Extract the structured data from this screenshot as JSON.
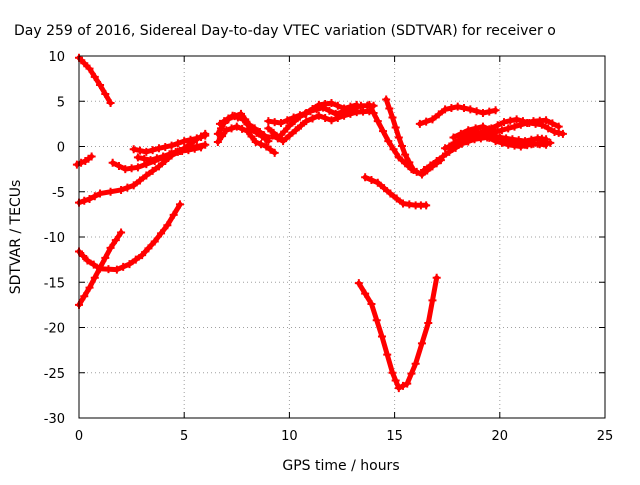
{
  "chart_data": {
    "type": "scatter",
    "title": "Day 259 of 2016, Sidereal Day-to-day VTEC variation (SDTVAR) for receiver o",
    "xlabel": "GPS time / hours",
    "ylabel": "SDTVAR / TECUs",
    "xlim": [
      0,
      25
    ],
    "ylim": [
      -30,
      10
    ],
    "xticks": [
      "0",
      "5",
      "10",
      "15",
      "20",
      "25"
    ],
    "yticks": [
      "10",
      "5",
      "0",
      "-5",
      "-10",
      "-15",
      "-20",
      "-25",
      "-30"
    ],
    "grid": true,
    "legend": "none",
    "color": "#ff0000",
    "series": [
      {
        "points": [
          [
            0.0,
            9.8
          ],
          [
            0.5,
            8.6
          ],
          [
            1.0,
            6.8
          ],
          [
            1.5,
            4.8
          ]
        ]
      },
      {
        "points": [
          [
            -0.1,
            -2.0
          ],
          [
            0.3,
            -1.6
          ],
          [
            0.6,
            -1.1
          ]
        ]
      },
      {
        "points": [
          [
            0.0,
            -6.2
          ],
          [
            0.5,
            -5.8
          ],
          [
            1.0,
            -5.2
          ],
          [
            2.0,
            -4.8
          ],
          [
            2.6,
            -4.3
          ],
          [
            3.2,
            -3.2
          ],
          [
            3.8,
            -2.2
          ],
          [
            4.4,
            -1.0
          ],
          [
            5.0,
            -0.2
          ],
          [
            5.6,
            0.8
          ],
          [
            6.0,
            1.4
          ]
        ]
      },
      {
        "points": [
          [
            0.0,
            -11.6
          ],
          [
            0.4,
            -12.6
          ],
          [
            1.0,
            -13.5
          ],
          [
            1.8,
            -13.6
          ],
          [
            2.4,
            -13.0
          ],
          [
            3.0,
            -12.0
          ],
          [
            3.6,
            -10.5
          ],
          [
            4.2,
            -8.7
          ],
          [
            4.8,
            -6.4
          ]
        ]
      },
      {
        "points": [
          [
            0.0,
            -17.5
          ],
          [
            0.5,
            -15.6
          ],
          [
            1.0,
            -13.4
          ],
          [
            1.5,
            -11.2
          ],
          [
            2.0,
            -9.5
          ]
        ]
      },
      {
        "points": [
          [
            1.6,
            -1.8
          ],
          [
            2.2,
            -2.5
          ],
          [
            2.8,
            -2.3
          ],
          [
            3.6,
            -1.6
          ],
          [
            4.4,
            -0.8
          ],
          [
            5.2,
            -0.2
          ],
          [
            6.0,
            0.2
          ]
        ]
      },
      {
        "points": [
          [
            2.6,
            -0.3
          ],
          [
            3.2,
            -0.6
          ],
          [
            3.8,
            -0.2
          ],
          [
            4.4,
            0.1
          ],
          [
            5.0,
            0.6
          ],
          [
            5.6,
            0.9
          ],
          [
            6.0,
            1.2
          ]
        ]
      },
      {
        "points": [
          [
            2.8,
            -1.2
          ],
          [
            3.4,
            -1.5
          ],
          [
            4.0,
            -1.1
          ],
          [
            4.6,
            -0.6
          ],
          [
            5.2,
            -0.4
          ],
          [
            5.8,
            -0.1
          ]
        ]
      },
      {
        "points": [
          [
            6.6,
            1.4
          ],
          [
            6.9,
            2.6
          ],
          [
            7.3,
            3.4
          ],
          [
            7.8,
            3.0
          ],
          [
            8.2,
            1.9
          ],
          [
            8.7,
            1.1
          ],
          [
            9.0,
            0.6
          ]
        ]
      },
      {
        "points": [
          [
            6.6,
            0.5
          ],
          [
            7.0,
            1.8
          ],
          [
            7.5,
            2.2
          ],
          [
            8.0,
            1.7
          ],
          [
            8.4,
            0.5
          ],
          [
            8.9,
            0.0
          ],
          [
            9.3,
            -0.7
          ]
        ]
      },
      {
        "points": [
          [
            6.7,
            2.5
          ],
          [
            7.1,
            3.1
          ],
          [
            7.7,
            3.6
          ],
          [
            8.1,
            2.4
          ],
          [
            8.6,
            1.6
          ],
          [
            9.0,
            0.9
          ]
        ]
      },
      {
        "points": [
          [
            9.0,
            2.0
          ],
          [
            9.5,
            1.0
          ],
          [
            10.0,
            2.3
          ],
          [
            10.5,
            3.3
          ],
          [
            11.0,
            3.9
          ],
          [
            11.6,
            4.3
          ],
          [
            12.2,
            3.6
          ],
          [
            12.8,
            4.0
          ],
          [
            13.4,
            4.5
          ],
          [
            14.0,
            4.5
          ]
        ]
      },
      {
        "points": [
          [
            9.2,
            1.2
          ],
          [
            9.7,
            0.6
          ],
          [
            10.3,
            1.8
          ],
          [
            10.8,
            2.8
          ],
          [
            11.4,
            3.4
          ],
          [
            12.0,
            2.9
          ],
          [
            12.6,
            3.4
          ],
          [
            13.2,
            3.8
          ],
          [
            13.8,
            3.9
          ]
        ]
      },
      {
        "points": [
          [
            9.0,
            2.8
          ],
          [
            9.6,
            2.6
          ],
          [
            10.2,
            3.2
          ],
          [
            10.8,
            3.7
          ],
          [
            11.4,
            4.6
          ],
          [
            12.0,
            4.8
          ],
          [
            12.6,
            4.2
          ],
          [
            13.2,
            4.6
          ]
        ]
      },
      {
        "points": [
          [
            13.8,
            4.6
          ],
          [
            14.2,
            2.8
          ],
          [
            14.7,
            0.6
          ],
          [
            15.2,
            -1.2
          ],
          [
            15.8,
            -2.5
          ],
          [
            16.3,
            -3.1
          ],
          [
            16.8,
            -2.2
          ],
          [
            17.2,
            -1.5
          ]
        ]
      },
      {
        "points": [
          [
            14.6,
            5.2
          ],
          [
            14.9,
            3.2
          ],
          [
            15.2,
            1.0
          ],
          [
            15.5,
            -0.9
          ],
          [
            15.9,
            -2.6
          ]
        ]
      },
      {
        "points": [
          [
            13.6,
            -3.4
          ],
          [
            14.2,
            -4.0
          ],
          [
            14.8,
            -5.2
          ],
          [
            15.4,
            -6.3
          ],
          [
            16.0,
            -6.5
          ],
          [
            16.5,
            -6.5
          ]
        ]
      },
      {
        "points": [
          [
            13.3,
            -15.1
          ],
          [
            13.9,
            -17.4
          ],
          [
            14.4,
            -21.0
          ],
          [
            14.9,
            -25.0
          ],
          [
            15.2,
            -26.7
          ],
          [
            15.6,
            -26.2
          ],
          [
            16.0,
            -24.0
          ],
          [
            16.6,
            -19.5
          ],
          [
            17.0,
            -14.5
          ]
        ]
      },
      {
        "points": [
          [
            16.4,
            -2.6
          ],
          [
            17.0,
            -1.6
          ],
          [
            17.6,
            -0.6
          ],
          [
            18.2,
            0.3
          ],
          [
            18.8,
            0.8
          ],
          [
            19.4,
            1.0
          ],
          [
            20.0,
            1.0
          ],
          [
            20.6,
            0.8
          ],
          [
            21.2,
            0.6
          ],
          [
            21.8,
            0.9
          ],
          [
            22.2,
            0.8
          ]
        ]
      },
      {
        "points": [
          [
            17.6,
            0.0
          ],
          [
            18.2,
            0.9
          ],
          [
            18.8,
            1.6
          ],
          [
            19.4,
            1.4
          ],
          [
            20.0,
            1.0
          ],
          [
            20.6,
            0.5
          ],
          [
            21.2,
            0.2
          ],
          [
            21.8,
            0.3
          ],
          [
            22.4,
            0.4
          ]
        ]
      },
      {
        "points": [
          [
            16.2,
            2.5
          ],
          [
            16.8,
            3.0
          ],
          [
            17.4,
            4.1
          ],
          [
            18.0,
            4.4
          ],
          [
            18.6,
            4.1
          ],
          [
            19.2,
            3.7
          ],
          [
            19.8,
            4.0
          ]
        ]
      },
      {
        "points": [
          [
            18.4,
            0.6
          ],
          [
            19.0,
            1.4
          ],
          [
            19.6,
            2.0
          ],
          [
            20.2,
            2.7
          ],
          [
            20.8,
            3.0
          ],
          [
            21.4,
            2.6
          ],
          [
            22.0,
            2.4
          ],
          [
            22.6,
            1.6
          ],
          [
            23.0,
            1.4
          ]
        ]
      },
      {
        "points": [
          [
            17.8,
            1.0
          ],
          [
            18.5,
            1.8
          ],
          [
            19.2,
            2.2
          ],
          [
            19.8,
            1.6
          ],
          [
            20.4,
            2.0
          ],
          [
            21.0,
            2.4
          ],
          [
            21.6,
            2.8
          ],
          [
            22.2,
            2.9
          ],
          [
            22.8,
            2.2
          ]
        ]
      },
      {
        "points": [
          [
            17.4,
            -0.2
          ],
          [
            18.0,
            0.4
          ],
          [
            18.6,
            0.9
          ],
          [
            19.2,
            1.3
          ],
          [
            19.8,
            0.6
          ],
          [
            20.4,
            0.2
          ],
          [
            21.0,
            0.0
          ],
          [
            21.6,
            0.3
          ],
          [
            22.2,
            0.2
          ]
        ]
      }
    ]
  }
}
